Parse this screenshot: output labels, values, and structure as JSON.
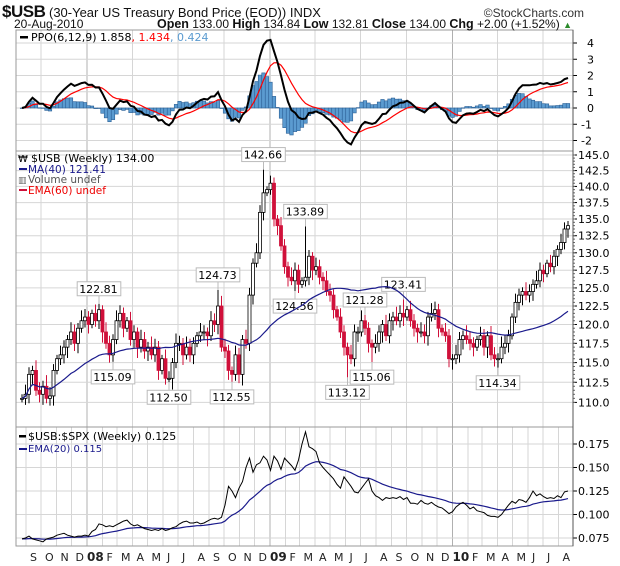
{
  "header": {
    "symbol": "$USB",
    "name": "(30-Year US Treasury Bond Price (EOD))",
    "exchange": "INDX",
    "copyright": "©StockCharts.com",
    "date": "20-Aug-2010",
    "open_label": "Open",
    "open": "133.00",
    "high_label": "High",
    "high": "134.84",
    "low_label": "Low",
    "low": "132.81",
    "close_label": "Close",
    "close": "134.00",
    "chg_label": "Chg",
    "chg": "+2.00 (+1.52%)",
    "chg_icon": "up-triangle-icon"
  },
  "legends": {
    "ppo": {
      "label": "PPO(6,12,9) 1.858",
      "sep1": ", ",
      "signal": "1.434",
      "sep2": ", ",
      "hist": "0.424"
    },
    "price": {
      "label": "$USB (Weekly) 134.00",
      "ma": "MA(40) 121.41",
      "volume": "Volume undef",
      "ema": "EMA(60) undef"
    },
    "ratio": {
      "label": "$USB:$SPX (Weekly) 0.125",
      "ema": "EMA(20) 0.115"
    }
  },
  "colors": {
    "up": "#000000",
    "down": "#d0103a",
    "ma": "#1a1a8c",
    "ppo_line": "#000000",
    "ppo_signal": "#ff0000",
    "ppo_hist": "#5b9bd0",
    "ppo_hist_border": "#2a5f95",
    "grid": "#d6d6d6",
    "chg_up": "#2a8a2a"
  },
  "chart_data": {
    "type": "candlestick",
    "end_date": "2010-08-20",
    "frequency": "weekly",
    "price": {
      "scale": "log",
      "ylim": [
        109.5,
        145.5
      ],
      "ticks": [
        "145.0",
        "142.5",
        "140.0",
        "137.5",
        "135.0",
        "132.5",
        "130.0",
        "127.5",
        "125.0",
        "122.5",
        "120.0",
        "117.5",
        "115.0",
        "112.5",
        "110.0"
      ],
      "close": [
        110.5,
        111,
        113.5,
        114,
        111.5,
        111,
        112,
        110.5,
        110.8,
        114,
        115.5,
        116,
        117,
        118,
        119,
        117.5,
        119.5,
        120.5,
        121,
        120,
        121.5,
        120.5,
        122,
        119,
        117.5,
        116,
        118,
        120.5,
        121.5,
        119.5,
        120.5,
        118,
        119,
        117,
        118,
        116.5,
        117,
        116,
        117,
        114,
        115.5,
        113,
        113,
        115,
        117.5,
        117.5,
        116,
        117,
        116,
        117.5,
        118.5,
        119,
        119,
        118.5,
        120.5,
        120,
        122.5,
        117,
        116.5,
        114,
        113.5,
        116,
        113.5,
        118,
        117.5,
        124,
        128.5,
        130,
        136,
        139,
        139.5,
        140.5,
        135,
        134,
        131,
        128,
        126.5,
        126,
        127.5,
        125.5,
        126,
        126.5,
        129.5,
        127.5,
        128,
        126.5,
        126,
        124.5,
        124,
        122,
        121,
        119,
        117,
        116,
        115.5,
        119,
        119,
        120.5,
        119.5,
        117.5,
        117,
        117.5,
        119,
        120,
        118.5,
        120.5,
        121,
        120.5,
        121.5,
        121,
        122,
        120.5,
        119.5,
        119,
        119,
        118.5,
        121,
        121.5,
        122,
        119.5,
        119,
        118.5,
        115.5,
        115.5,
        116,
        118,
        118.5,
        118,
        117.5,
        117,
        118,
        118.5,
        117,
        118.5,
        116,
        115.5,
        115.5,
        117,
        117.5,
        118.5,
        121,
        123,
        124,
        124.5,
        124,
        124.5,
        125.5,
        126,
        127.5,
        127,
        128.5,
        128,
        129.5,
        130.5,
        131.5,
        133.5,
        134
      ],
      "annotations": [
        {
          "date": "2008-01-25",
          "value": "122.81",
          "type": "high"
        },
        {
          "date": "2008-02-22",
          "value": "115.09",
          "type": "low"
        },
        {
          "date": "2008-06-13",
          "value": "112.50",
          "type": "low"
        },
        {
          "date": "2008-09-19",
          "value": "124.73",
          "type": "high"
        },
        {
          "date": "2008-10-17",
          "value": "112.55",
          "type": "low"
        },
        {
          "date": "2008-12-19",
          "value": "142.66",
          "type": "high"
        },
        {
          "date": "2009-02-20",
          "value": "124.56",
          "type": "low"
        },
        {
          "date": "2009-03-13",
          "value": "133.89",
          "type": "high"
        },
        {
          "date": "2009-06-05",
          "value": "113.12",
          "type": "low"
        },
        {
          "date": "2009-07-10",
          "value": "121.28",
          "type": "high"
        },
        {
          "date": "2009-07-24",
          "value": "115.06",
          "type": "low"
        },
        {
          "date": "2009-09-25",
          "value": "123.41",
          "type": "high"
        },
        {
          "date": "2010-04-02",
          "value": "114.34",
          "type": "low"
        }
      ],
      "ma_period": 40
    },
    "ppo": {
      "fast": 6,
      "slow": 12,
      "signal": 9,
      "ticks": [
        "4",
        "3",
        "2",
        "1",
        "0",
        "-1",
        "-2"
      ],
      "ylim": [
        -2.6,
        4.7
      ]
    },
    "ratio": {
      "ylim": [
        0.066,
        0.2
      ],
      "ticks": [
        "0.175",
        "0.150",
        "0.125",
        "0.100",
        "0.075"
      ],
      "values": [
        0.074,
        0.075,
        0.077,
        0.074,
        0.073,
        0.072,
        0.071,
        0.074,
        0.075,
        0.076,
        0.078,
        0.079,
        0.08,
        0.078,
        0.077,
        0.076,
        0.077,
        0.077,
        0.078,
        0.077,
        0.082,
        0.084,
        0.09,
        0.089,
        0.087,
        0.088,
        0.087,
        0.089,
        0.091,
        0.093,
        0.094,
        0.09,
        0.088,
        0.089,
        0.087,
        0.085,
        0.084,
        0.083,
        0.084,
        0.083,
        0.085,
        0.083,
        0.084,
        0.086,
        0.087,
        0.09,
        0.092,
        0.093,
        0.091,
        0.091,
        0.092,
        0.09,
        0.091,
        0.093,
        0.095,
        0.096,
        0.095,
        0.097,
        0.11,
        0.13,
        0.125,
        0.118,
        0.128,
        0.135,
        0.15,
        0.16,
        0.145,
        0.153,
        0.155,
        0.162,
        0.158,
        0.147,
        0.162,
        0.157,
        0.148,
        0.16,
        0.156,
        0.152,
        0.147,
        0.158,
        0.175,
        0.188,
        0.172,
        0.17,
        0.167,
        0.155,
        0.15,
        0.146,
        0.142,
        0.138,
        0.132,
        0.128,
        0.14,
        0.135,
        0.13,
        0.124,
        0.123,
        0.128,
        0.133,
        0.138,
        0.125,
        0.12,
        0.118,
        0.115,
        0.118,
        0.117,
        0.118,
        0.117,
        0.119,
        0.116,
        0.118,
        0.112,
        0.112,
        0.111,
        0.115,
        0.112,
        0.111,
        0.113,
        0.11,
        0.108,
        0.107,
        0.104,
        0.101,
        0.103,
        0.108,
        0.111,
        0.113,
        0.11,
        0.106,
        0.108,
        0.104,
        0.103,
        0.102,
        0.099,
        0.098,
        0.098,
        0.097,
        0.1,
        0.105,
        0.11,
        0.114,
        0.112,
        0.116,
        0.115,
        0.113,
        0.118,
        0.125,
        0.12,
        0.122,
        0.119,
        0.117,
        0.118,
        0.117,
        0.12,
        0.118,
        0.124,
        0.125
      ],
      "ema_period": 20
    },
    "x_months": [
      "S",
      "O",
      "N",
      "D",
      "08",
      "F",
      "M",
      "A",
      "M",
      "J",
      "J",
      "A",
      "S",
      "O",
      "N",
      "D",
      "09",
      "F",
      "M",
      "A",
      "M",
      "J",
      "J",
      "A",
      "S",
      "O",
      "N",
      "D",
      "10",
      "F",
      "M",
      "A",
      "M",
      "J",
      "J",
      "A"
    ],
    "grid": true
  }
}
